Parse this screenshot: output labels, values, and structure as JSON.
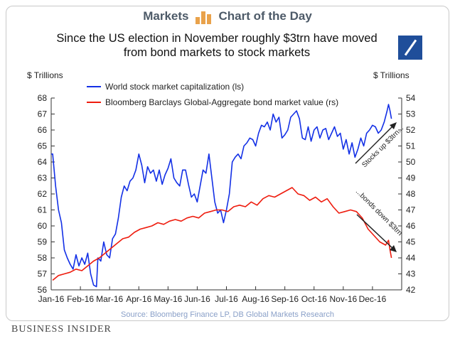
{
  "header": {
    "left_label": "Markets",
    "right_label": "Chart of the Day"
  },
  "brand": {
    "logo_icon": "deutsche-bank-logo",
    "footer": "BUSINESS INSIDER"
  },
  "colors": {
    "stock": "#1330e6",
    "bond": "#ee1c0e",
    "accent": "#e9a24b",
    "logo": "#1f4e9a"
  },
  "chart_data": {
    "type": "line",
    "title": "Since the US election in November roughly $3trn have moved from bond markets to stock markets",
    "ylabel_left": "$ Trillions",
    "ylabel_right": "$ Trillions",
    "ylim_left": [
      56,
      68
    ],
    "ylim_right": [
      42,
      54
    ],
    "yticks_left": [
      56,
      57,
      58,
      59,
      60,
      61,
      62,
      63,
      64,
      65,
      66,
      67,
      68
    ],
    "yticks_right": [
      42,
      43,
      44,
      45,
      46,
      47,
      48,
      49,
      50,
      51,
      52,
      53,
      54
    ],
    "x_months": [
      "Jan-16",
      "Feb-16",
      "Mar-16",
      "Apr-16",
      "May-16",
      "Jun-16",
      "Jul-16",
      "Aug-16",
      "Sep-16",
      "Oct-16",
      "Nov-16",
      "Dec-16"
    ],
    "series": [
      {
        "name": "World stock market capitalization (ls)",
        "axis": "left",
        "x": [
          0.0,
          0.05,
          0.15,
          0.25,
          0.35,
          0.45,
          0.55,
          0.65,
          0.75,
          0.85,
          0.95,
          1.05,
          1.15,
          1.25,
          1.35,
          1.45,
          1.55,
          1.6,
          1.7,
          1.8,
          1.9,
          2.0,
          2.1,
          2.2,
          2.3,
          2.4,
          2.5,
          2.6,
          2.7,
          2.8,
          2.9,
          3.0,
          3.1,
          3.2,
          3.3,
          3.4,
          3.5,
          3.6,
          3.7,
          3.8,
          3.9,
          4.0,
          4.1,
          4.2,
          4.3,
          4.4,
          4.5,
          4.6,
          4.7,
          4.8,
          4.9,
          5.0,
          5.1,
          5.2,
          5.3,
          5.4,
          5.5,
          5.6,
          5.7,
          5.8,
          5.9,
          6.0,
          6.1,
          6.2,
          6.3,
          6.4,
          6.5,
          6.6,
          6.7,
          6.8,
          6.9,
          7.0,
          7.1,
          7.2,
          7.3,
          7.4,
          7.5,
          7.6,
          7.7,
          7.8,
          7.9,
          8.0,
          8.1,
          8.2,
          8.3,
          8.4,
          8.5,
          8.6,
          8.7,
          8.8,
          8.9,
          9.0,
          9.1,
          9.2,
          9.3,
          9.4,
          9.5,
          9.6,
          9.7,
          9.8,
          9.9,
          10.0,
          10.1,
          10.2,
          10.3,
          10.4,
          10.5,
          10.6,
          10.7,
          10.8,
          10.9,
          11.0,
          11.1,
          11.2,
          11.3,
          11.4,
          11.5,
          11.55,
          11.6,
          11.65
        ],
        "values": [
          64.5,
          64.5,
          62.5,
          61.0,
          60.2,
          58.5,
          58.0,
          57.6,
          57.3,
          58.2,
          57.5,
          58.0,
          57.6,
          58.3,
          57.0,
          56.3,
          56.2,
          58.0,
          57.8,
          59.0,
          58.2,
          58.0,
          59.2,
          59.5,
          60.5,
          61.8,
          62.5,
          62.2,
          62.8,
          63.0,
          63.5,
          64.5,
          63.8,
          62.7,
          63.7,
          63.3,
          63.5,
          62.8,
          63.5,
          62.6,
          63.2,
          63.6,
          64.2,
          63.0,
          62.7,
          62.5,
          63.5,
          63.5,
          62.6,
          61.8,
          62.0,
          61.5,
          62.5,
          63.5,
          63.3,
          64.5,
          63.0,
          61.5,
          60.8,
          61.0,
          60.2,
          61.0,
          62.0,
          64.0,
          64.3,
          64.5,
          64.2,
          65.0,
          65.2,
          65.5,
          65.4,
          65.0,
          65.8,
          66.3,
          66.2,
          66.5,
          66.0,
          67.0,
          66.5,
          66.8,
          65.5,
          65.7,
          66.0,
          66.8,
          67.0,
          67.2,
          66.7,
          65.5,
          65.4,
          66.2,
          65.3,
          66.0,
          66.2,
          65.5,
          66.0,
          66.1,
          65.4,
          65.8,
          66.2,
          65.6,
          65.8,
          64.8,
          65.4,
          64.5,
          65.2,
          64.3,
          64.8,
          65.5,
          65.0,
          65.8,
          66.0,
          66.3,
          66.2,
          65.8,
          66.0,
          66.5,
          67.2,
          67.6,
          67.2,
          66.7
        ]
      },
      {
        "name": "Bloomberg Barclays Global-Aggregate bond market value (rs)",
        "axis": "right",
        "x": [
          0.05,
          0.25,
          0.45,
          0.65,
          0.85,
          1.05,
          1.25,
          1.45,
          1.65,
          1.85,
          2.05,
          2.25,
          2.45,
          2.65,
          2.85,
          3.05,
          3.25,
          3.45,
          3.65,
          3.85,
          4.05,
          4.25,
          4.45,
          4.65,
          4.85,
          5.05,
          5.25,
          5.45,
          5.65,
          5.85,
          6.05,
          6.25,
          6.45,
          6.65,
          6.85,
          7.05,
          7.25,
          7.45,
          7.65,
          7.85,
          8.05,
          8.25,
          8.45,
          8.65,
          8.85,
          9.05,
          9.25,
          9.45,
          9.65,
          9.85,
          10.05,
          10.25,
          10.45,
          10.65,
          10.85,
          11.05,
          11.25,
          11.45,
          11.55,
          11.6,
          11.65
        ],
        "values": [
          42.6,
          42.9,
          43.0,
          43.1,
          43.3,
          43.2,
          43.5,
          43.8,
          44.0,
          44.3,
          44.6,
          44.9,
          45.2,
          45.3,
          45.6,
          45.8,
          45.9,
          46.0,
          46.2,
          46.1,
          46.3,
          46.4,
          46.3,
          46.5,
          46.6,
          46.5,
          46.8,
          46.9,
          47.0,
          47.0,
          46.9,
          47.2,
          47.3,
          47.2,
          47.5,
          47.3,
          47.7,
          47.9,
          47.8,
          48.0,
          48.2,
          48.4,
          48.0,
          47.9,
          47.6,
          47.8,
          47.5,
          47.7,
          47.2,
          46.8,
          46.9,
          47.0,
          46.9,
          46.5,
          45.8,
          45.4,
          45.0,
          44.8,
          45.1,
          44.5,
          44.0
        ]
      }
    ],
    "annotations": [
      {
        "text": "Stocks up $3trn...",
        "series": "stock"
      },
      {
        "text": "...bonds down $3trn",
        "series": "bond"
      }
    ],
    "source": "Source: Bloomberg Finance LP, DB Global Markets Research",
    "grid": false,
    "legend_position": "top-left"
  }
}
